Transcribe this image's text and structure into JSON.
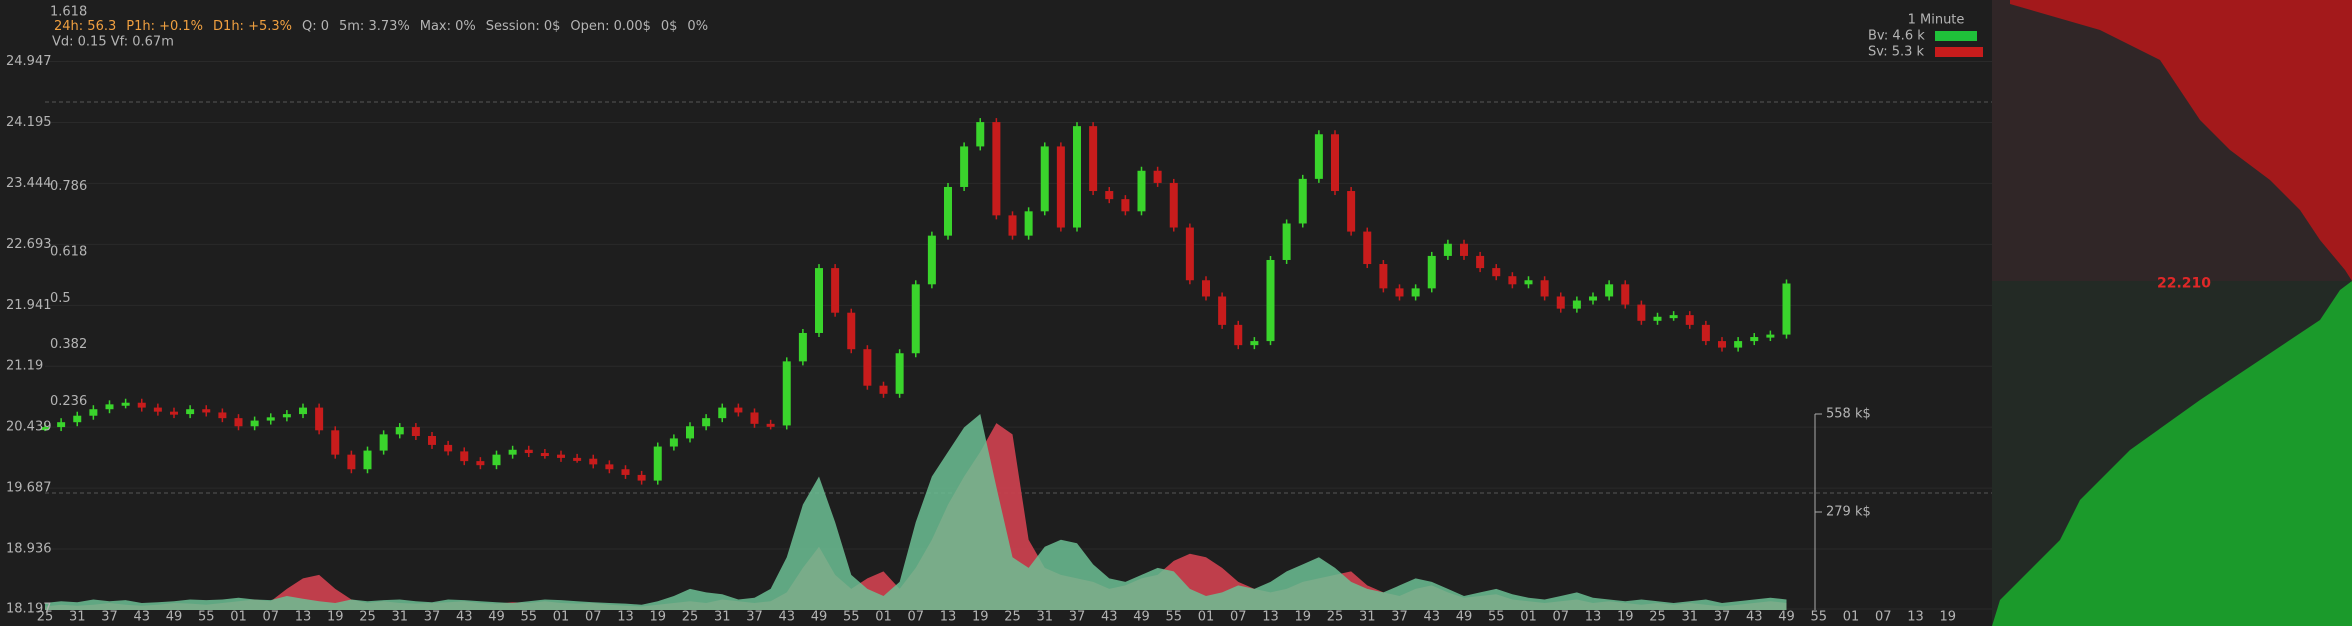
{
  "chart_data": {
    "type": "candlestick",
    "interval": "1 Minute",
    "header": [
      "24h: 56.3",
      "P1h: +0.1%",
      "D1h: +5.3%",
      "Q: 0",
      "5m: 3.73%",
      "Max: 0%",
      "Session: 0$",
      "Open: 0.00$",
      "0$",
      "0%"
    ],
    "header2": "Vd: 0.15 Vf: 0.67m",
    "time_labels": [
      "25",
      "31",
      "37",
      "43",
      "49",
      "55",
      "01",
      "07",
      "13",
      "19",
      "25",
      "31",
      "37",
      "43",
      "49",
      "55",
      "01",
      "07",
      "13",
      "19",
      "25",
      "31",
      "37",
      "43",
      "49",
      "55",
      "01",
      "07",
      "13",
      "19",
      "25",
      "31",
      "37",
      "43",
      "49",
      "55",
      "01",
      "07",
      "13",
      "19",
      "25",
      "31",
      "37",
      "43",
      "49",
      "55",
      "01",
      "07",
      "13",
      "19",
      "25",
      "31",
      "37",
      "43",
      "49",
      "55",
      "01",
      "07",
      "13",
      "19"
    ],
    "values": [
      20.44,
      20.5,
      20.58,
      20.66,
      20.72,
      20.74,
      20.68,
      20.63,
      20.6,
      20.66,
      20.62,
      20.55,
      20.45,
      20.52,
      20.56,
      20.6,
      20.68,
      20.4,
      20.1,
      19.92,
      20.15,
      20.35,
      20.44,
      20.33,
      20.22,
      20.14,
      20.02,
      19.97,
      20.1,
      20.16,
      20.12,
      20.1,
      20.06,
      20.05,
      19.98,
      19.92,
      19.85,
      19.78,
      20.2,
      20.3,
      20.45,
      20.55,
      20.68,
      20.62,
      20.48,
      20.46,
      21.25,
      21.6,
      22.4,
      21.85,
      21.4,
      20.95,
      20.85,
      21.35,
      22.2,
      22.8,
      23.4,
      23.9,
      24.2,
      23.05,
      22.8,
      23.1,
      23.9,
      22.9,
      24.15,
      23.35,
      23.25,
      23.1,
      23.6,
      23.45,
      22.9,
      22.25,
      22.05,
      21.7,
      21.45,
      21.5,
      22.5,
      22.95,
      23.5,
      24.05,
      23.35,
      22.85,
      22.45,
      22.15,
      22.05,
      22.15,
      22.55,
      22.7,
      22.55,
      22.4,
      22.3,
      22.2,
      22.25,
      22.05,
      21.9,
      22.0,
      22.05,
      22.2,
      21.95,
      21.75,
      21.8,
      21.82,
      21.7,
      21.5,
      21.42,
      21.5,
      21.55,
      21.58,
      22.21
    ],
    "color_up": "#3ad42c",
    "color_down": "#c81c1c",
    "ylim": [
      18.197,
      24.947
    ],
    "yticks": [
      24.947,
      24.195,
      23.444,
      22.693,
      21.941,
      21.19,
      20.439,
      19.687,
      18.936,
      18.197
    ],
    "fib_levels": [
      1.618,
      0.786,
      0.618,
      0.5,
      0.382,
      0.236
    ],
    "last_price": {
      "value": 22.21,
      "label": "22.210"
    },
    "volume": {
      "vlim": [
        0,
        558
      ],
      "vticks": [
        {
          "value": 558,
          "label": "558 k$"
        },
        {
          "value": 279,
          "label": "279 k$"
        }
      ],
      "series": [
        {
          "name": "Bv: 4.6 k",
          "color": "#1fc23a",
          "fill": "#6cc094",
          "values": [
            20,
            25,
            22,
            30,
            25,
            28,
            20,
            22,
            25,
            30,
            28,
            30,
            35,
            30,
            28,
            40,
            32,
            25,
            20,
            30,
            25,
            28,
            30,
            25,
            22,
            30,
            28,
            25,
            22,
            20,
            25,
            30,
            28,
            25,
            22,
            20,
            18,
            15,
            25,
            40,
            60,
            50,
            45,
            30,
            35,
            60,
            150,
            300,
            380,
            250,
            100,
            60,
            40,
            80,
            250,
            380,
            450,
            520,
            558,
            350,
            150,
            120,
            180,
            200,
            190,
            130,
            90,
            80,
            100,
            120,
            110,
            60,
            40,
            50,
            70,
            60,
            80,
            110,
            130,
            150,
            120,
            80,
            60,
            50,
            70,
            90,
            80,
            60,
            40,
            50,
            60,
            45,
            35,
            30,
            40,
            50,
            35,
            30,
            25,
            30,
            25,
            20,
            25,
            30,
            20,
            25,
            30,
            35,
            30
          ]
        },
        {
          "name": "Sv: 5.3 k",
          "color": "#c81c1c",
          "fill": "#c8404e",
          "values": [
            10,
            15,
            12,
            15,
            20,
            15,
            12,
            15,
            20,
            18,
            15,
            20,
            25,
            30,
            25,
            60,
            90,
            100,
            60,
            30,
            20,
            25,
            20,
            18,
            20,
            22,
            25,
            20,
            18,
            22,
            20,
            25,
            20,
            18,
            20,
            15,
            12,
            10,
            15,
            20,
            25,
            20,
            30,
            25,
            20,
            25,
            50,
            120,
            180,
            100,
            60,
            90,
            110,
            60,
            120,
            200,
            300,
            380,
            450,
            532,
            500,
            200,
            120,
            100,
            90,
            80,
            60,
            70,
            90,
            100,
            140,
            160,
            150,
            120,
            80,
            60,
            50,
            60,
            80,
            90,
            100,
            110,
            70,
            50,
            40,
            60,
            70,
            50,
            35,
            40,
            45,
            30,
            25,
            20,
            25,
            30,
            20,
            25,
            20,
            15,
            20,
            15,
            20,
            15,
            10,
            15,
            20,
            25,
            20
          ]
        }
      ]
    }
  }
}
